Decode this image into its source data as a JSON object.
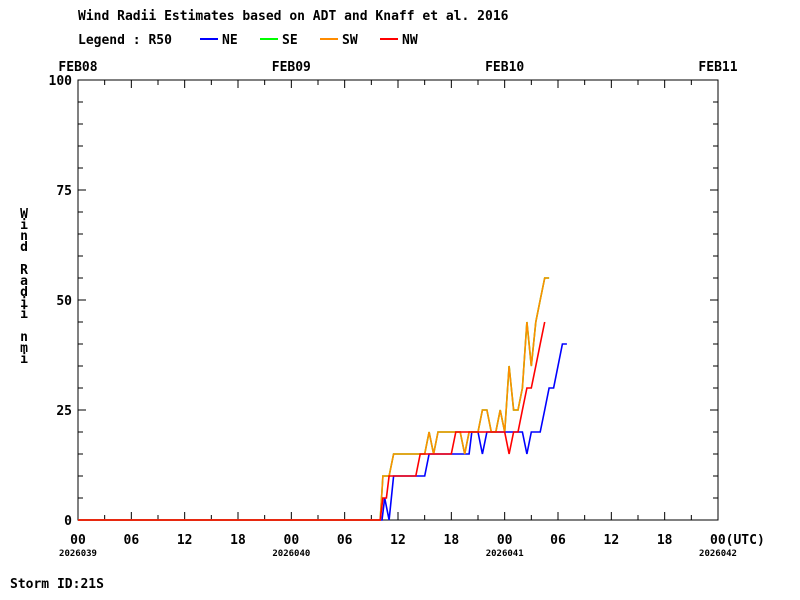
{
  "chart_data": {
    "type": "line",
    "title": "Wind Radii Estimates based on ADT and Knaff et al. 2016",
    "legend_label": "Legend : R50",
    "ylabel": "Wind Radii nmi",
    "ylim": [
      0,
      100
    ],
    "y_ticks": [
      "0",
      "25",
      "50",
      "75",
      "100"
    ],
    "xlim_hours": [
      0,
      72
    ],
    "x_tick_labels": [
      "00",
      "06",
      "12",
      "18",
      "00",
      "06",
      "12",
      "18",
      "00",
      "06",
      "12",
      "18",
      "00(UTC)"
    ],
    "x_tick_hours": [
      0,
      6,
      12,
      18,
      24,
      30,
      36,
      42,
      48,
      54,
      60,
      66,
      72
    ],
    "top_dates": [
      {
        "label": "FEB08",
        "hour": 0
      },
      {
        "label": "FEB09",
        "hour": 24
      },
      {
        "label": "FEB10",
        "hour": 48
      },
      {
        "label": "FEB11",
        "hour": 72
      }
    ],
    "julian_dates": [
      {
        "label": "2026039",
        "hour": 0
      },
      {
        "label": "2026040",
        "hour": 24
      },
      {
        "label": "2026041",
        "hour": 48
      },
      {
        "label": "2026042",
        "hour": 72
      }
    ],
    "storm_id": "Storm ID:21S",
    "series": [
      {
        "name": "NE",
        "color": "#0000ff",
        "points": [
          [
            0,
            0
          ],
          [
            34,
            0
          ],
          [
            34.2,
            0
          ],
          [
            34.5,
            5
          ],
          [
            35,
            0
          ],
          [
            35.5,
            10
          ],
          [
            36,
            10
          ],
          [
            38,
            10
          ],
          [
            39,
            10
          ],
          [
            39.5,
            15
          ],
          [
            40,
            15
          ],
          [
            42,
            15
          ],
          [
            43,
            15
          ],
          [
            44,
            15
          ],
          [
            44.3,
            20
          ],
          [
            45,
            20
          ],
          [
            45.5,
            15
          ],
          [
            46,
            20
          ],
          [
            47,
            20
          ],
          [
            48,
            20
          ],
          [
            49,
            20
          ],
          [
            49.5,
            20
          ],
          [
            50,
            20
          ],
          [
            50.5,
            15
          ],
          [
            51,
            20
          ],
          [
            52,
            20
          ],
          [
            52.5,
            25
          ],
          [
            53,
            30
          ],
          [
            53.5,
            30
          ],
          [
            54,
            35
          ],
          [
            54.5,
            40
          ],
          [
            55,
            40
          ]
        ]
      },
      {
        "name": "SE",
        "color": "#00ff00",
        "points": [
          [
            0,
            0
          ],
          [
            34,
            0
          ],
          [
            34.3,
            10
          ],
          [
            35,
            10
          ],
          [
            35.5,
            15
          ],
          [
            37,
            15
          ],
          [
            38,
            15
          ],
          [
            38.5,
            15
          ],
          [
            39,
            15
          ],
          [
            39.5,
            20
          ],
          [
            40,
            15
          ],
          [
            40.5,
            20
          ],
          [
            41,
            20
          ],
          [
            42,
            20
          ],
          [
            43,
            20
          ],
          [
            43.5,
            15
          ],
          [
            44,
            20
          ],
          [
            45,
            20
          ],
          [
            45.5,
            25
          ],
          [
            46,
            25
          ],
          [
            46.5,
            20
          ],
          [
            47,
            20
          ],
          [
            47.5,
            25
          ],
          [
            48,
            20
          ],
          [
            48.5,
            35
          ],
          [
            49,
            25
          ],
          [
            49.5,
            25
          ],
          [
            50,
            30
          ],
          [
            50.5,
            45
          ],
          [
            51,
            35
          ],
          [
            51.5,
            45
          ],
          [
            52,
            50
          ],
          [
            52.5,
            55
          ],
          [
            53,
            55
          ]
        ]
      },
      {
        "name": "SW",
        "color": "#ff8c00",
        "points": [
          [
            0,
            0
          ],
          [
            34,
            0
          ],
          [
            34.3,
            10
          ],
          [
            35,
            10
          ],
          [
            35.5,
            15
          ],
          [
            37,
            15
          ],
          [
            38,
            15
          ],
          [
            38.5,
            15
          ],
          [
            39,
            15
          ],
          [
            39.5,
            20
          ],
          [
            40,
            15
          ],
          [
            40.5,
            20
          ],
          [
            41,
            20
          ],
          [
            42,
            20
          ],
          [
            43,
            20
          ],
          [
            43.5,
            15
          ],
          [
            44,
            20
          ],
          [
            45,
            20
          ],
          [
            45.5,
            25
          ],
          [
            46,
            25
          ],
          [
            46.5,
            20
          ],
          [
            47,
            20
          ],
          [
            47.5,
            25
          ],
          [
            48,
            20
          ],
          [
            48.5,
            35
          ],
          [
            49,
            25
          ],
          [
            49.5,
            25
          ],
          [
            50,
            30
          ],
          [
            50.5,
            45
          ],
          [
            51,
            35
          ],
          [
            51.5,
            45
          ],
          [
            52,
            50
          ],
          [
            52.5,
            55
          ],
          [
            53,
            55
          ]
        ]
      },
      {
        "name": "NW",
        "color": "#ff0000",
        "points": [
          [
            0,
            0
          ],
          [
            34,
            0
          ],
          [
            34.3,
            5
          ],
          [
            34.7,
            5
          ],
          [
            35,
            10
          ],
          [
            36,
            10
          ],
          [
            38,
            10
          ],
          [
            38.5,
            15
          ],
          [
            39,
            15
          ],
          [
            40,
            15
          ],
          [
            42,
            15
          ],
          [
            42.5,
            20
          ],
          [
            43,
            20
          ],
          [
            44,
            20
          ],
          [
            45,
            20
          ],
          [
            46,
            20
          ],
          [
            47,
            20
          ],
          [
            48,
            20
          ],
          [
            48.5,
            15
          ],
          [
            49,
            20
          ],
          [
            49.5,
            20
          ],
          [
            50,
            25
          ],
          [
            50.5,
            30
          ],
          [
            51,
            30
          ],
          [
            51.5,
            35
          ],
          [
            52,
            40
          ],
          [
            52.5,
            45
          ]
        ]
      }
    ]
  }
}
